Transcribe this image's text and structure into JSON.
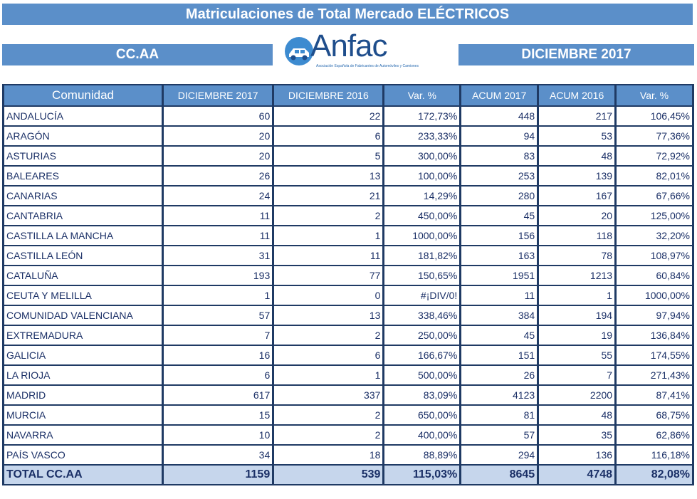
{
  "title": "Matriculaciones de Total Mercado ELÉCTRICOS",
  "left_label": "CC.AA",
  "right_label": "DICIEMBRE   2017",
  "logo": {
    "word": "Anfac",
    "tagline": "Asociación Española de Fabricantes de Automóviles y Camiones",
    "icon": "truck-car-icon"
  },
  "table": {
    "headers": [
      "Comunidad",
      "DICIEMBRE   2017",
      "DICIEMBRE   2016",
      "Var. %",
      "ACUM 2017",
      "ACUM 2016",
      "Var. %"
    ],
    "rows": [
      [
        "ANDALUCÍA",
        "60",
        "22",
        "172,73%",
        "448",
        "217",
        "106,45%"
      ],
      [
        "ARAGÓN",
        "20",
        "6",
        "233,33%",
        "94",
        "53",
        "77,36%"
      ],
      [
        "ASTURIAS",
        "20",
        "5",
        "300,00%",
        "83",
        "48",
        "72,92%"
      ],
      [
        "BALEARES",
        "26",
        "13",
        "100,00%",
        "253",
        "139",
        "82,01%"
      ],
      [
        "CANARIAS",
        "24",
        "21",
        "14,29%",
        "280",
        "167",
        "67,66%"
      ],
      [
        "CANTABRIA",
        "11",
        "2",
        "450,00%",
        "45",
        "20",
        "125,00%"
      ],
      [
        "CASTILLA LA MANCHA",
        "11",
        "1",
        "1000,00%",
        "156",
        "118",
        "32,20%"
      ],
      [
        "CASTILLA LEÓN",
        "31",
        "11",
        "181,82%",
        "163",
        "78",
        "108,97%"
      ],
      [
        "CATALUÑA",
        "193",
        "77",
        "150,65%",
        "1951",
        "1213",
        "60,84%"
      ],
      [
        "CEUTA Y MELILLA",
        "1",
        "0",
        "#¡DIV/0!",
        "11",
        "1",
        "1000,00%"
      ],
      [
        "COMUNIDAD VALENCIANA",
        "57",
        "13",
        "338,46%",
        "384",
        "194",
        "97,94%"
      ],
      [
        "EXTREMADURA",
        "7",
        "2",
        "250,00%",
        "45",
        "19",
        "136,84%"
      ],
      [
        "GALICIA",
        "16",
        "6",
        "166,67%",
        "151",
        "55",
        "174,55%"
      ],
      [
        "LA RIOJA",
        "6",
        "1",
        "500,00%",
        "26",
        "7",
        "271,43%"
      ],
      [
        "MADRID",
        "617",
        "337",
        "83,09%",
        "4123",
        "2200",
        "87,41%"
      ],
      [
        "MURCIA",
        "15",
        "2",
        "650,00%",
        "81",
        "48",
        "68,75%"
      ],
      [
        "NAVARRA",
        "10",
        "2",
        "400,00%",
        "57",
        "35",
        "62,86%"
      ],
      [
        "PAÍS VASCO",
        "34",
        "18",
        "88,89%",
        "294",
        "136",
        "116,18%"
      ]
    ],
    "total": [
      "TOTAL CC.AA",
      "1159",
      "539",
      "115,03%",
      "8645",
      "4748",
      "82,08%"
    ]
  }
}
